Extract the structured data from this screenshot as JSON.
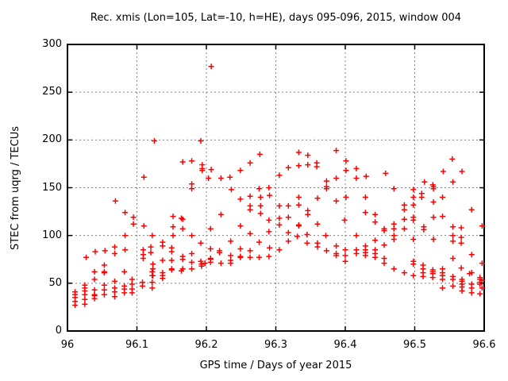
{
  "chart_data": {
    "type": "scatter",
    "title": "Rec. xmis (Lon=105, Lat=-10, h=HE), days 095-096, 2015, window 004",
    "xlabel": "GPS time / Days of year 2015",
    "ylabel": "STEC from uqrg / TECUs",
    "xlim": [
      96,
      96.6
    ],
    "ylim": [
      0,
      300
    ],
    "xticks": [
      96,
      96.1,
      96.2,
      96.3,
      96.4,
      96.5,
      96.6
    ],
    "xtick_labels": [
      "96",
      "96.1",
      "96.2",
      "96.3",
      "96.4",
      "96.5",
      "96.6"
    ],
    "yticks": [
      0,
      50,
      100,
      150,
      200,
      250,
      300
    ],
    "ytick_labels": [
      "0",
      "50",
      "100",
      "150",
      "200",
      "250",
      "300"
    ],
    "grid": true,
    "legend": "none",
    "marker": "plus",
    "marker_color": "#ff0000",
    "grid_color": "#808080",
    "axis_color": "#000000",
    "series": [
      {
        "name": "STEC",
        "points": [
          [
            96.011,
            41
          ],
          [
            96.011,
            38
          ],
          [
            96.011,
            35
          ],
          [
            96.011,
            31
          ],
          [
            96.011,
            27
          ],
          [
            96.025,
            48
          ],
          [
            96.025,
            45
          ],
          [
            96.025,
            42
          ],
          [
            96.025,
            38
          ],
          [
            96.025,
            33
          ],
          [
            96.025,
            28
          ],
          [
            96.027,
            77
          ],
          [
            96.039,
            62
          ],
          [
            96.039,
            54
          ],
          [
            96.039,
            43
          ],
          [
            96.039,
            38
          ],
          [
            96.039,
            37
          ],
          [
            96.039,
            34
          ],
          [
            96.04,
            83
          ],
          [
            96.053,
            69
          ],
          [
            96.053,
            62
          ],
          [
            96.053,
            61
          ],
          [
            96.053,
            48
          ],
          [
            96.053,
            43
          ],
          [
            96.053,
            38
          ],
          [
            96.054,
            84
          ],
          [
            96.068,
            88
          ],
          [
            96.068,
            81
          ],
          [
            96.068,
            52
          ],
          [
            96.068,
            45
          ],
          [
            96.068,
            41
          ],
          [
            96.068,
            36
          ],
          [
            96.069,
            136
          ],
          [
            96.082,
            62
          ],
          [
            96.082,
            47
          ],
          [
            96.082,
            44
          ],
          [
            96.082,
            40
          ],
          [
            96.083,
            124
          ],
          [
            96.083,
            100
          ],
          [
            96.083,
            85
          ],
          [
            96.093,
            54
          ],
          [
            96.093,
            49
          ],
          [
            96.093,
            44
          ],
          [
            96.093,
            40
          ],
          [
            96.095,
            119
          ],
          [
            96.095,
            112
          ],
          [
            96.108,
            51
          ],
          [
            96.108,
            47
          ],
          [
            96.109,
            85
          ],
          [
            96.109,
            80
          ],
          [
            96.109,
            76
          ],
          [
            96.11,
            161
          ],
          [
            96.11,
            110
          ],
          [
            96.12,
            88
          ],
          [
            96.12,
            82
          ],
          [
            96.122,
            100
          ],
          [
            96.122,
            62
          ],
          [
            96.122,
            58
          ],
          [
            96.122,
            51
          ],
          [
            96.122,
            45
          ],
          [
            96.123,
            70
          ],
          [
            96.123,
            65
          ],
          [
            96.123,
            58
          ],
          [
            96.125,
            199
          ],
          [
            96.137,
            93
          ],
          [
            96.137,
            89
          ],
          [
            96.137,
            74
          ],
          [
            96.137,
            61
          ],
          [
            96.137,
            58
          ],
          [
            96.137,
            55
          ],
          [
            96.15,
            87
          ],
          [
            96.15,
            83
          ],
          [
            96.15,
            74
          ],
          [
            96.15,
            65
          ],
          [
            96.15,
            64
          ],
          [
            96.152,
            120
          ],
          [
            96.152,
            109
          ],
          [
            96.152,
            100
          ],
          [
            96.164,
            118
          ],
          [
            96.164,
            63
          ],
          [
            96.166,
            177
          ],
          [
            96.166,
            117
          ],
          [
            96.166,
            107
          ],
          [
            96.166,
            78
          ],
          [
            96.166,
            75
          ],
          [
            96.166,
            65
          ],
          [
            96.179,
            178
          ],
          [
            96.179,
            154
          ],
          [
            96.179,
            149
          ],
          [
            96.179,
            100
          ],
          [
            96.179,
            81
          ],
          [
            96.179,
            72
          ],
          [
            96.179,
            65
          ],
          [
            96.192,
            199
          ],
          [
            96.192,
            92
          ],
          [
            96.192,
            73
          ],
          [
            96.193,
            70
          ],
          [
            96.193,
            68
          ],
          [
            96.194,
            174
          ],
          [
            96.194,
            170
          ],
          [
            96.194,
            168
          ],
          [
            96.198,
            71
          ],
          [
            96.203,
            160
          ],
          [
            96.206,
            107
          ],
          [
            96.206,
            86
          ],
          [
            96.206,
            76
          ],
          [
            96.206,
            75
          ],
          [
            96.206,
            72
          ],
          [
            96.207,
            277
          ],
          [
            96.207,
            169
          ],
          [
            96.219,
            84
          ],
          [
            96.219,
            82
          ],
          [
            96.221,
            160
          ],
          [
            96.221,
            122
          ],
          [
            96.221,
            71
          ],
          [
            96.234,
            161
          ],
          [
            96.235,
            94
          ],
          [
            96.235,
            79
          ],
          [
            96.235,
            74
          ],
          [
            96.235,
            71
          ],
          [
            96.236,
            148
          ],
          [
            96.249,
            168
          ],
          [
            96.249,
            138
          ],
          [
            96.249,
            110
          ],
          [
            96.249,
            86
          ],
          [
            96.249,
            78
          ],
          [
            96.249,
            77
          ],
          [
            96.263,
            176
          ],
          [
            96.263,
            141
          ],
          [
            96.263,
            131
          ],
          [
            96.263,
            127
          ],
          [
            96.263,
            102
          ],
          [
            96.263,
            84
          ],
          [
            96.263,
            77
          ],
          [
            96.276,
            149
          ],
          [
            96.276,
            93
          ],
          [
            96.276,
            77
          ],
          [
            96.277,
            185
          ],
          [
            96.278,
            140
          ],
          [
            96.278,
            131
          ],
          [
            96.278,
            123
          ],
          [
            96.29,
            150
          ],
          [
            96.29,
            116
          ],
          [
            96.29,
            104
          ],
          [
            96.29,
            78
          ],
          [
            96.291,
            142
          ],
          [
            96.291,
            87
          ],
          [
            96.305,
            163
          ],
          [
            96.305,
            131
          ],
          [
            96.305,
            118
          ],
          [
            96.305,
            111
          ],
          [
            96.305,
            85
          ],
          [
            96.318,
            171
          ],
          [
            96.318,
            131
          ],
          [
            96.318,
            119
          ],
          [
            96.318,
            103
          ],
          [
            96.318,
            94
          ],
          [
            96.331,
            99
          ],
          [
            96.333,
            187
          ],
          [
            96.333,
            173
          ],
          [
            96.333,
            140
          ],
          [
            96.333,
            132
          ],
          [
            96.333,
            111
          ],
          [
            96.333,
            110
          ],
          [
            96.345,
            101
          ],
          [
            96.345,
            92
          ],
          [
            96.346,
            184
          ],
          [
            96.346,
            174
          ],
          [
            96.346,
            126
          ],
          [
            96.346,
            122
          ],
          [
            96.359,
            176
          ],
          [
            96.359,
            172
          ],
          [
            96.36,
            139
          ],
          [
            96.36,
            112
          ],
          [
            96.36,
            92
          ],
          [
            96.36,
            88
          ],
          [
            96.372,
            100
          ],
          [
            96.373,
            157
          ],
          [
            96.373,
            151
          ],
          [
            96.373,
            149
          ],
          [
            96.373,
            84
          ],
          [
            96.387,
            189
          ],
          [
            96.387,
            160
          ],
          [
            96.387,
            136
          ],
          [
            96.387,
            89
          ],
          [
            96.387,
            81
          ],
          [
            96.387,
            79
          ],
          [
            96.399,
            116
          ],
          [
            96.4,
            85
          ],
          [
            96.4,
            79
          ],
          [
            96.4,
            73
          ],
          [
            96.401,
            178
          ],
          [
            96.401,
            168
          ],
          [
            96.401,
            140
          ],
          [
            96.416,
            170
          ],
          [
            96.416,
            160
          ],
          [
            96.416,
            100
          ],
          [
            96.416,
            85
          ],
          [
            96.416,
            81
          ],
          [
            96.429,
            140
          ],
          [
            96.429,
            124
          ],
          [
            96.429,
            89
          ],
          [
            96.429,
            85
          ],
          [
            96.429,
            82
          ],
          [
            96.429,
            79
          ],
          [
            96.43,
            162
          ],
          [
            96.443,
            122
          ],
          [
            96.443,
            114
          ],
          [
            96.443,
            95
          ],
          [
            96.443,
            85
          ],
          [
            96.443,
            81
          ],
          [
            96.443,
            77
          ],
          [
            96.456,
            107
          ],
          [
            96.456,
            105
          ],
          [
            96.456,
            90
          ],
          [
            96.456,
            76
          ],
          [
            96.456,
            71
          ],
          [
            96.458,
            165
          ],
          [
            96.47,
            149
          ],
          [
            96.47,
            112
          ],
          [
            96.47,
            107
          ],
          [
            96.47,
            100
          ],
          [
            96.47,
            96
          ],
          [
            96.47,
            65
          ],
          [
            96.485,
            132
          ],
          [
            96.485,
            127
          ],
          [
            96.485,
            117
          ],
          [
            96.485,
            107
          ],
          [
            96.485,
            61
          ],
          [
            96.498,
            148
          ],
          [
            96.498,
            140
          ],
          [
            96.498,
            132
          ],
          [
            96.498,
            119
          ],
          [
            96.498,
            116
          ],
          [
            96.498,
            96
          ],
          [
            96.498,
            73
          ],
          [
            96.498,
            70
          ],
          [
            96.498,
            58
          ],
          [
            96.51,
            144
          ],
          [
            96.51,
            140
          ],
          [
            96.512,
            69
          ],
          [
            96.512,
            65
          ],
          [
            96.512,
            61
          ],
          [
            96.512,
            57
          ],
          [
            96.513,
            109
          ],
          [
            96.513,
            106
          ],
          [
            96.514,
            156
          ],
          [
            96.526,
            153
          ],
          [
            96.526,
            64
          ],
          [
            96.526,
            62
          ],
          [
            96.526,
            60
          ],
          [
            96.526,
            56
          ],
          [
            96.527,
            151
          ],
          [
            96.527,
            149
          ],
          [
            96.527,
            135
          ],
          [
            96.527,
            119
          ],
          [
            96.527,
            96
          ],
          [
            96.54,
            140
          ],
          [
            96.54,
            120
          ],
          [
            96.54,
            65
          ],
          [
            96.54,
            61
          ],
          [
            96.54,
            58
          ],
          [
            96.54,
            54
          ],
          [
            96.54,
            45
          ],
          [
            96.541,
            167
          ],
          [
            96.554,
            180
          ],
          [
            96.555,
            156
          ],
          [
            96.555,
            109
          ],
          [
            96.555,
            100
          ],
          [
            96.555,
            94
          ],
          [
            96.555,
            76
          ],
          [
            96.555,
            57
          ],
          [
            96.555,
            54
          ],
          [
            96.555,
            47
          ],
          [
            96.567,
            108
          ],
          [
            96.567,
            98
          ],
          [
            96.567,
            92
          ],
          [
            96.567,
            66
          ],
          [
            96.568,
            167
          ],
          [
            96.568,
            54
          ],
          [
            96.568,
            52
          ],
          [
            96.568,
            49
          ],
          [
            96.568,
            46
          ],
          [
            96.568,
            42
          ],
          [
            96.579,
            60
          ],
          [
            96.582,
            127
          ],
          [
            96.582,
            80
          ],
          [
            96.582,
            61
          ],
          [
            96.582,
            49
          ],
          [
            96.582,
            45
          ],
          [
            96.582,
            40
          ],
          [
            96.594,
            56
          ],
          [
            96.594,
            54
          ],
          [
            96.594,
            51
          ],
          [
            96.594,
            49
          ],
          [
            96.594,
            39
          ],
          [
            96.597,
            110
          ],
          [
            96.597,
            71
          ],
          [
            96.597,
            53
          ],
          [
            96.597,
            45
          ]
        ]
      }
    ]
  }
}
